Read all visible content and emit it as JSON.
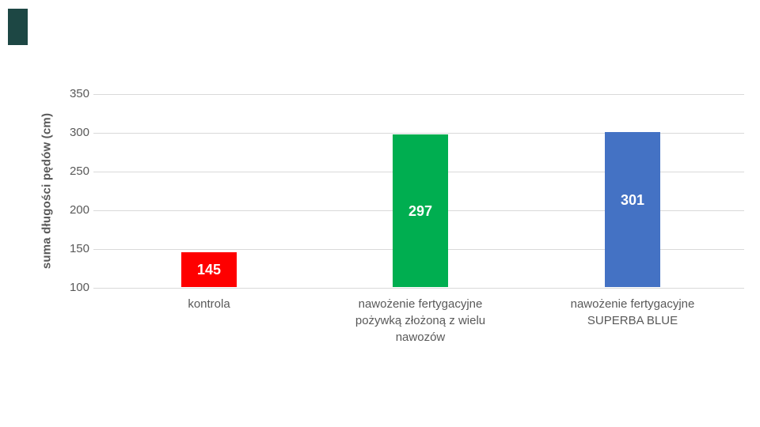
{
  "decor": {
    "corner_accent_color": "#1d4744"
  },
  "chart_data": {
    "type": "bar",
    "title": "",
    "xlabel": "",
    "ylabel": "suma długości pędów (cm)",
    "categories": [
      "kontrola",
      "nawożenie fertygacyjne pożywką złożoną z wielu nawozów",
      "nawożenie fertygacyjne SUPERBA BLUE"
    ],
    "category_label_lines": [
      [
        "kontrola"
      ],
      [
        "nawożenie fertygacyjne",
        "pożywką złożoną z wielu",
        "nawozów"
      ],
      [
        "nawożenie fertygacyjne",
        "SUPERBA BLUE"
      ]
    ],
    "values": [
      145,
      297,
      301
    ],
    "value_labels": [
      "145",
      "297",
      "301"
    ],
    "bar_colors": [
      "#fe0000",
      "#00ae50",
      "#4472c4"
    ],
    "value_label_color": "#ffffff",
    "ylim": [
      100,
      350
    ],
    "yticks": [
      100,
      150,
      200,
      250,
      300,
      350
    ],
    "grid": "horizontal",
    "gridline_color": "#d9d9d9",
    "axis_text_color": "#595959",
    "legend": "none",
    "background": "#ffffff"
  }
}
